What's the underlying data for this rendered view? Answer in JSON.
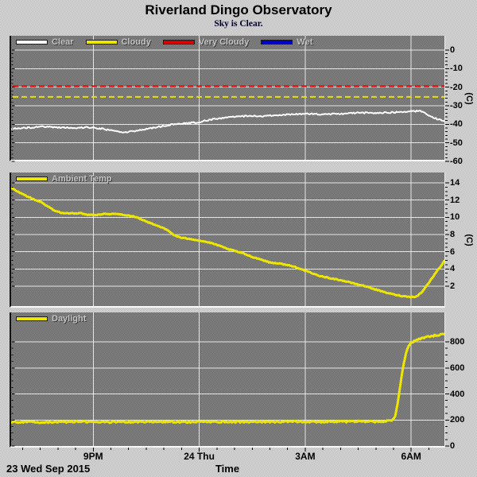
{
  "header": {
    "title": "Riverland Dingo Observatory",
    "subtitle": "Sky is Clear."
  },
  "footer": {
    "date": "23 Wed Sep 2015",
    "axis_title": "Time"
  },
  "colors": {
    "clear": "#ffffff",
    "cloudy": "#ece600",
    "very_cloudy": "#d60000",
    "wet": "#0000cc",
    "grid": "#f2f2f2",
    "plot_bg_dark": "#767676",
    "page_bg": "#c9c9c9"
  },
  "x_axis": {
    "range": [
      18.676,
      30.94
    ],
    "tick_values": [
      21,
      24,
      27,
      30
    ],
    "tick_labels": [
      "9PM",
      "24 Thu",
      "3AM",
      "6AM"
    ],
    "minor_step": 0.5,
    "title": "Time"
  },
  "chart_data": [
    {
      "id": "sky-conditions",
      "type": "line",
      "legend": [
        {
          "label": "Clear",
          "color": "#ffffff"
        },
        {
          "label": "Cloudy",
          "color": "#ece600"
        },
        {
          "label": "Very Cloudy",
          "color": "#d60000"
        },
        {
          "label": "Wet",
          "color": "#0000cc"
        }
      ],
      "y_axis": {
        "side": "right",
        "unit": "(C)",
        "tick_values": [
          0,
          -10,
          -20,
          -30,
          -40,
          -50,
          -60
        ],
        "tick_labels": [
          "0",
          "-10",
          "-20",
          "-30",
          "-40",
          "-50",
          "-60"
        ],
        "minor_step": 2,
        "ylim": [
          -59.1,
          7.7
        ]
      },
      "ref_lines": [
        {
          "name": "very-cloudy-threshold",
          "value": -19.5,
          "color": "#dd0000"
        },
        {
          "name": "cloudy-threshold",
          "value": -25.2,
          "color": "#e8e000"
        }
      ],
      "series": [
        {
          "name": "Clear",
          "color": "#ffffff",
          "width": 2,
          "noise": 0.38,
          "points": [
            [
              18.68,
              -42.3
            ],
            [
              19.0,
              -42.1
            ],
            [
              19.3,
              -41.6
            ],
            [
              19.6,
              -41.2
            ],
            [
              19.9,
              -41.5
            ],
            [
              20.2,
              -41.8
            ],
            [
              20.5,
              -42.0
            ],
            [
              20.8,
              -41.6
            ],
            [
              21.0,
              -41.9
            ],
            [
              21.3,
              -42.5
            ],
            [
              21.6,
              -43.6
            ],
            [
              21.8,
              -44.3
            ],
            [
              22.0,
              -44.1
            ],
            [
              22.3,
              -43.2
            ],
            [
              22.6,
              -42.1
            ],
            [
              22.9,
              -41.2
            ],
            [
              23.2,
              -40.2
            ],
            [
              23.5,
              -39.7
            ],
            [
              23.8,
              -39.2
            ],
            [
              24.0,
              -38.7
            ],
            [
              24.3,
              -37.6
            ],
            [
              24.6,
              -36.7
            ],
            [
              24.9,
              -36.1
            ],
            [
              25.2,
              -35.7
            ],
            [
              25.5,
              -35.5
            ],
            [
              25.8,
              -35.7
            ],
            [
              26.1,
              -35.1
            ],
            [
              26.4,
              -34.8
            ],
            [
              26.7,
              -34.6
            ],
            [
              27.0,
              -34.3
            ],
            [
              27.3,
              -34.5
            ],
            [
              27.6,
              -34.7
            ],
            [
              27.9,
              -34.4
            ],
            [
              28.2,
              -34.1
            ],
            [
              28.5,
              -33.9
            ],
            [
              28.8,
              -33.7
            ],
            [
              29.1,
              -33.9
            ],
            [
              29.4,
              -33.6
            ],
            [
              29.7,
              -33.3
            ],
            [
              29.9,
              -33.1
            ],
            [
              30.1,
              -32.9
            ],
            [
              30.25,
              -32.7
            ],
            [
              30.4,
              -34.0
            ],
            [
              30.55,
              -35.6
            ],
            [
              30.7,
              -36.9
            ],
            [
              30.85,
              -37.9
            ],
            [
              30.94,
              -38.4
            ]
          ]
        }
      ]
    },
    {
      "id": "ambient-temperature",
      "type": "line",
      "legend": [
        {
          "label": "Ambient Temp",
          "color": "#ece600"
        }
      ],
      "y_axis": {
        "side": "right",
        "unit": "(C)",
        "tick_values": [
          14,
          12,
          10,
          8,
          6,
          4,
          2
        ],
        "tick_labels": [
          "14",
          "12",
          "10",
          "8",
          "6",
          "4",
          "2"
        ],
        "minor_step": 0.5,
        "ylim": [
          -0.31,
          15.2
        ]
      },
      "ref_lines": [],
      "series": [
        {
          "name": "Ambient Temp",
          "color": "#ece600",
          "width": 3,
          "noise": 0.05,
          "points": [
            [
              18.68,
              13.4
            ],
            [
              18.9,
              12.9
            ],
            [
              19.1,
              12.5
            ],
            [
              19.3,
              12.1
            ],
            [
              19.5,
              11.8
            ],
            [
              19.7,
              11.3
            ],
            [
              19.9,
              10.8
            ],
            [
              20.1,
              10.5
            ],
            [
              20.35,
              10.45
            ],
            [
              20.6,
              10.5
            ],
            [
              20.85,
              10.3
            ],
            [
              21.1,
              10.3
            ],
            [
              21.35,
              10.4
            ],
            [
              21.6,
              10.4
            ],
            [
              21.85,
              10.3
            ],
            [
              22.1,
              10.15
            ],
            [
              22.3,
              9.9
            ],
            [
              22.5,
              9.5
            ],
            [
              22.7,
              9.2
            ],
            [
              22.9,
              8.9
            ],
            [
              23.1,
              8.5
            ],
            [
              23.3,
              7.9
            ],
            [
              23.5,
              7.6
            ],
            [
              23.75,
              7.5
            ],
            [
              24.0,
              7.3
            ],
            [
              24.25,
              7.1
            ],
            [
              24.5,
              6.8
            ],
            [
              24.75,
              6.4
            ],
            [
              25.0,
              6.1
            ],
            [
              25.25,
              5.8
            ],
            [
              25.5,
              5.4
            ],
            [
              25.75,
              5.1
            ],
            [
              26.0,
              4.75
            ],
            [
              26.25,
              4.65
            ],
            [
              26.5,
              4.45
            ],
            [
              26.75,
              4.2
            ],
            [
              27.0,
              3.8
            ],
            [
              27.25,
              3.4
            ],
            [
              27.5,
              3.1
            ],
            [
              27.75,
              2.9
            ],
            [
              28.0,
              2.7
            ],
            [
              28.25,
              2.45
            ],
            [
              28.5,
              2.2
            ],
            [
              28.75,
              1.95
            ],
            [
              29.0,
              1.6
            ],
            [
              29.25,
              1.3
            ],
            [
              29.5,
              1.05
            ],
            [
              29.75,
              0.85
            ],
            [
              30.0,
              0.75
            ],
            [
              30.15,
              0.8
            ],
            [
              30.3,
              1.3
            ],
            [
              30.5,
              2.4
            ],
            [
              30.7,
              3.6
            ],
            [
              30.85,
              4.4
            ],
            [
              30.94,
              5.0
            ]
          ]
        }
      ]
    },
    {
      "id": "daylight",
      "type": "line",
      "legend": [
        {
          "label": "Daylight",
          "color": "#ece600"
        }
      ],
      "y_axis": {
        "side": "right",
        "unit": "",
        "tick_values": [
          800,
          600,
          400,
          200,
          0
        ],
        "tick_labels": [
          "800",
          "600",
          "400",
          "200",
          "0"
        ],
        "minor_step": 50,
        "ylim": [
          0,
          1026
        ]
      },
      "ref_lines": [],
      "series": [
        {
          "name": "Daylight",
          "color": "#ece600",
          "width": 3,
          "noise": 6,
          "points": [
            [
              18.68,
              185
            ],
            [
              19.5,
              183
            ],
            [
              20.5,
              186
            ],
            [
              21.5,
              184
            ],
            [
              22.5,
              186
            ],
            [
              23.5,
              185
            ],
            [
              24.5,
              186
            ],
            [
              25.5,
              185
            ],
            [
              26.5,
              187
            ],
            [
              27.5,
              186
            ],
            [
              28.5,
              188
            ],
            [
              29.0,
              187
            ],
            [
              29.2,
              188
            ],
            [
              29.35,
              192
            ],
            [
              29.45,
              200
            ],
            [
              29.55,
              230
            ],
            [
              29.62,
              330
            ],
            [
              29.68,
              450
            ],
            [
              29.74,
              560
            ],
            [
              29.8,
              650
            ],
            [
              29.86,
              720
            ],
            [
              29.92,
              762
            ],
            [
              29.98,
              790
            ],
            [
              30.05,
              800
            ],
            [
              30.15,
              815
            ],
            [
              30.3,
              828
            ],
            [
              30.5,
              840
            ],
            [
              30.7,
              850
            ],
            [
              30.85,
              857
            ],
            [
              30.94,
              862
            ]
          ]
        }
      ]
    }
  ]
}
